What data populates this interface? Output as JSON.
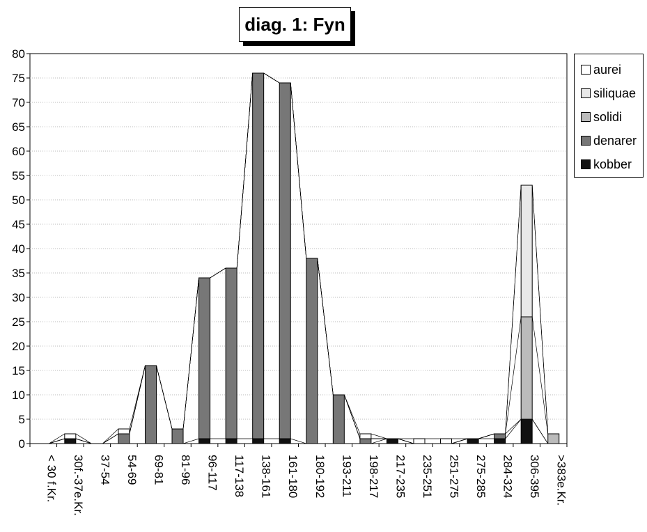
{
  "chart_data": {
    "type": "bar",
    "title": "diag. 1: Fyn",
    "xlabel": "",
    "ylabel": "",
    "ylim": [
      0,
      80
    ],
    "yticks": [
      0,
      5,
      10,
      15,
      20,
      25,
      30,
      35,
      40,
      45,
      50,
      55,
      60,
      65,
      70,
      75,
      80
    ],
    "stacked": true,
    "grid": "horizontal dotted",
    "legend_position": "right",
    "categories": [
      "< 30 f.Kr.",
      "30f.-37e.Kr.",
      "37-54",
      "54-69",
      "69-81",
      "81-96",
      "96-117",
      "117-138",
      "138-161",
      "161-180",
      "180-192",
      "193-211",
      "198-217",
      "217-235",
      "235-251",
      "251-275",
      "275-285",
      "284-324",
      "306-395",
      ">383e.Kr."
    ],
    "series": [
      {
        "name": "kobber",
        "color": "#111111",
        "values": [
          0,
          1,
          0,
          0,
          0,
          0,
          1,
          1,
          1,
          1,
          0,
          0,
          0,
          1,
          0,
          0,
          1,
          1,
          5,
          0
        ]
      },
      {
        "name": "denarer",
        "color": "#777777",
        "values": [
          0,
          0,
          0,
          2,
          16,
          3,
          33,
          35,
          75,
          73,
          38,
          10,
          1,
          0,
          0,
          0,
          0,
          1,
          0,
          0
        ]
      },
      {
        "name": "solidi",
        "color": "#bbbbbb",
        "values": [
          0,
          0,
          0,
          0,
          0,
          0,
          0,
          0,
          0,
          0,
          0,
          0,
          0,
          0,
          0,
          0,
          0,
          0,
          21,
          2
        ]
      },
      {
        "name": "siliquae",
        "color": "#e8e8e8",
        "values": [
          0,
          0,
          0,
          0,
          0,
          0,
          0,
          0,
          0,
          0,
          0,
          0,
          0,
          0,
          0,
          0,
          0,
          0,
          27,
          0
        ]
      },
      {
        "name": "aurei",
        "color": "#ffffff",
        "values": [
          0,
          1,
          0,
          1,
          0,
          0,
          0,
          0,
          0,
          0,
          0,
          0,
          1,
          0,
          1,
          1,
          0,
          0,
          0,
          0
        ]
      }
    ]
  },
  "legend": {
    "items": [
      {
        "label": "aurei",
        "color": "#ffffff"
      },
      {
        "label": "siliquae",
        "color": "#e8e8e8"
      },
      {
        "label": "solidi",
        "color": "#bbbbbb"
      },
      {
        "label": "denarer",
        "color": "#777777"
      },
      {
        "label": "kobber",
        "color": "#111111"
      }
    ]
  }
}
